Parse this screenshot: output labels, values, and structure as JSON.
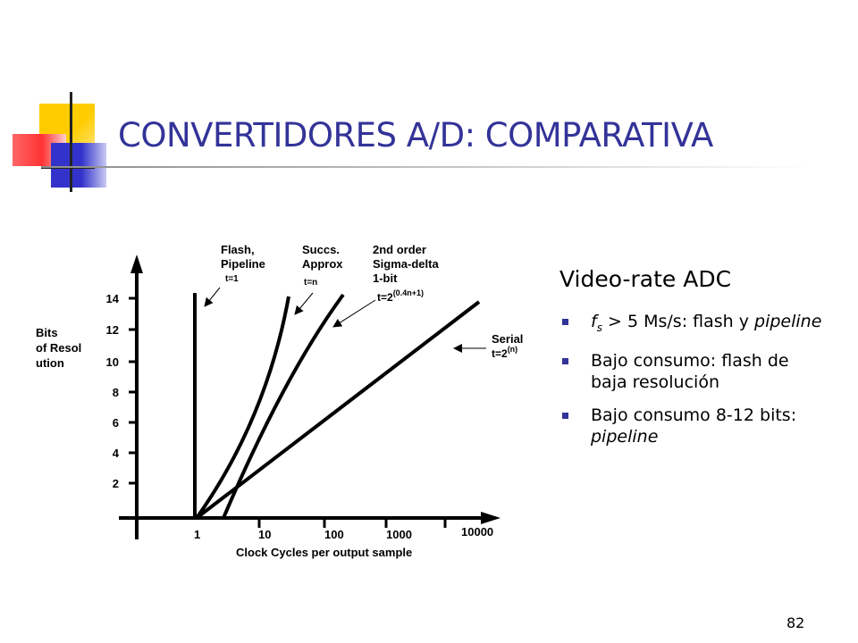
{
  "slide": {
    "title": "CONVERTIDORES A/D: COMPARATIVA",
    "page_number": "82"
  },
  "accent_colors": {
    "title": "#333399",
    "yellow": "#ffcc00",
    "blue": "#3333cc",
    "red": "#ff3333"
  },
  "figure": {
    "y_axis_label": [
      "Bits",
      "of Resol",
      "ution"
    ],
    "x_axis_label": "Clock Cycles per output sample",
    "y_ticks": [
      "2",
      "4",
      "6",
      "8",
      "10",
      "12",
      "14"
    ],
    "x_ticks": [
      "1",
      "10",
      "100",
      "1000",
      "10000"
    ],
    "curves": [
      {
        "label": [
          "Flash,",
          "Pipeline"
        ],
        "formula": "t=1"
      },
      {
        "label": [
          "Succs.",
          "Approx"
        ],
        "formula": "t=n"
      },
      {
        "label": [
          "2nd order",
          "Sigma-delta",
          "1-bit"
        ],
        "formula": "t=2",
        "formula_sup": "(0.4n+1)"
      },
      {
        "label": [
          "Serial"
        ],
        "formula": "t=2",
        "formula_sup": "(n)"
      }
    ]
  },
  "summary": {
    "heading": "Video-rate ADC",
    "items": [
      {
        "f": "f",
        "sub": "s",
        "rest": " > 5 Ms/s: flash y ",
        "em": "pipeline"
      },
      {
        "text": "Bajo consumo: flash de baja resolución"
      },
      {
        "text": "Bajo consumo 8-12 bits: ",
        "em": "pipeline"
      }
    ]
  }
}
